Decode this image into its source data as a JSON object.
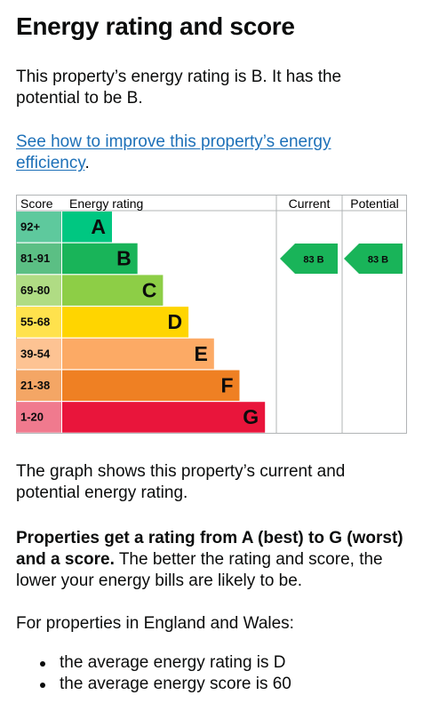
{
  "heading": "Energy rating and score",
  "intro": "This property’s energy rating is B. It has the potential to be B.",
  "improve_link": "See how to improve this property’s energy efficiency",
  "improve_link_suffix": ".",
  "graph_text": "The graph shows this property’s current and potential energy rating.",
  "properties_bold": "Properties get a rating from A (best) to G (worst) and a score.",
  "properties_rest": " The better the rating and score, the lower your energy bills are likely to be.",
  "england_wales": "For properties in England and Wales:",
  "averages": [
    "the average energy rating is D",
    "the average energy score is 60"
  ],
  "chart_data": {
    "type": "table",
    "headers": {
      "score": "Score",
      "rating": "Energy rating",
      "current": "Current",
      "potential": "Potential"
    },
    "bands": [
      {
        "score": "92+",
        "letter": "A",
        "color": "#00c781",
        "score_color": "#5ec99d"
      },
      {
        "score": "81-91",
        "letter": "B",
        "color": "#19b459",
        "score_color": "#5bbf84"
      },
      {
        "score": "69-80",
        "letter": "C",
        "color": "#8dce46",
        "score_color": "#b0dc84"
      },
      {
        "score": "55-68",
        "letter": "D",
        "color": "#ffd500",
        "score_color": "#ffe24d"
      },
      {
        "score": "39-54",
        "letter": "E",
        "color": "#fcaa65",
        "score_color": "#fdc393"
      },
      {
        "score": "21-38",
        "letter": "F",
        "color": "#ef8023",
        "score_color": "#f4a665"
      },
      {
        "score": "1-20",
        "letter": "G",
        "color": "#e9153b",
        "score_color": "#f07a8e"
      }
    ],
    "current": {
      "score": 83,
      "letter": "B",
      "label": "83 B",
      "color": "#19b459"
    },
    "potential": {
      "score": 83,
      "letter": "B",
      "label": "83 B",
      "color": "#19b459"
    }
  }
}
